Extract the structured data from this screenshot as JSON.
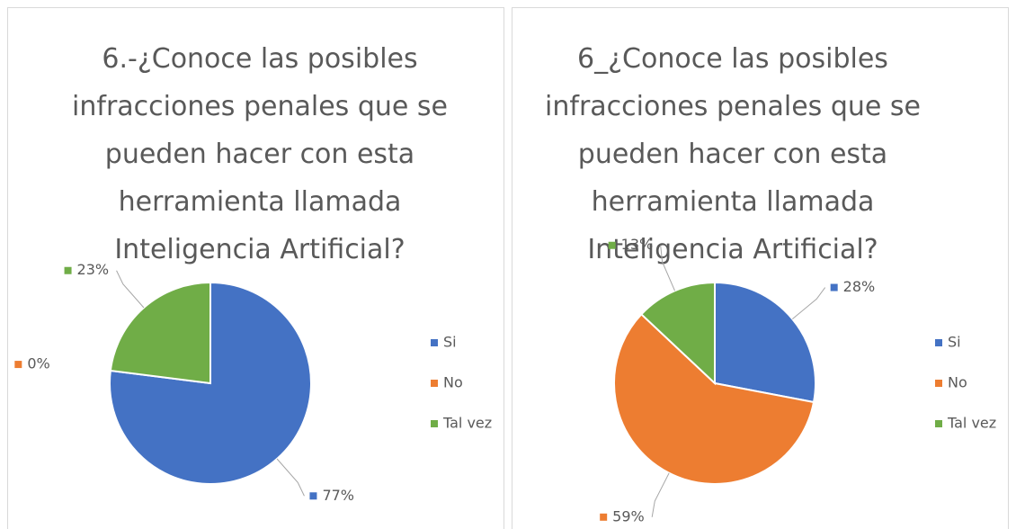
{
  "chart_data": [
    {
      "type": "pie",
      "title": "6.-¿Conoce las posibles infracciones penales que se pueden hacer con esta herramienta llamada Inteligencia Artificial?",
      "categories": [
        "Si",
        "No",
        "Tal vez"
      ],
      "values": [
        77,
        0,
        23
      ],
      "value_labels": [
        "77%",
        "0%",
        "23%"
      ],
      "colors": [
        "#4472c4",
        "#ed7d31",
        "#70ad47"
      ],
      "legend": "right"
    },
    {
      "type": "pie",
      "title": "6_¿Conoce las posibles infracciones penales que se pueden hacer con esta herramienta llamada Inteligencia Artificial?",
      "categories": [
        "Si",
        "No",
        "Tal vez"
      ],
      "values": [
        28,
        59,
        13
      ],
      "value_labels": [
        "28%",
        "59%",
        "13%"
      ],
      "colors": [
        "#4472c4",
        "#ed7d31",
        "#70ad47"
      ],
      "legend": "right"
    }
  ]
}
